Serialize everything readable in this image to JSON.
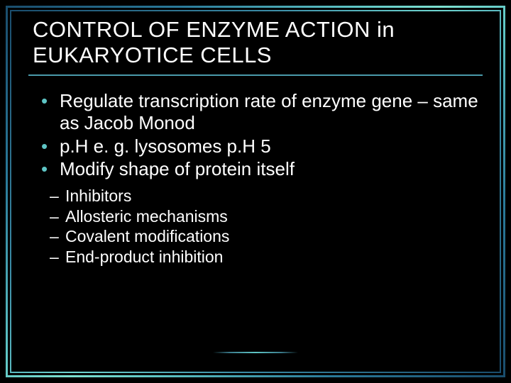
{
  "slide": {
    "title": "CONTROL OF ENZYME ACTION in EUKARYOTICE CELLS",
    "bullets": [
      "Regulate transcription rate of enzyme gene – same as Jacob Monod",
      "p.H e. g. lysosomes p.H 5",
      "Modify shape of protein itself"
    ],
    "subBullets": [
      "Inhibitors",
      "Allosteric mechanisms",
      "Covalent modifications",
      "End-product inhibition"
    ],
    "style": {
      "background_color": "#000000",
      "text_color": "#ffffff",
      "bullet_accent_color": "#5ec5c5",
      "border_gradient": [
        "#1a4d6d",
        "#2a7a9a",
        "#5ec5c5",
        "#7de0d0"
      ],
      "title_fontsize": 31,
      "bullet_fontsize": 26,
      "sub_bullet_fontsize": 23,
      "font_family": "Verdana"
    }
  }
}
